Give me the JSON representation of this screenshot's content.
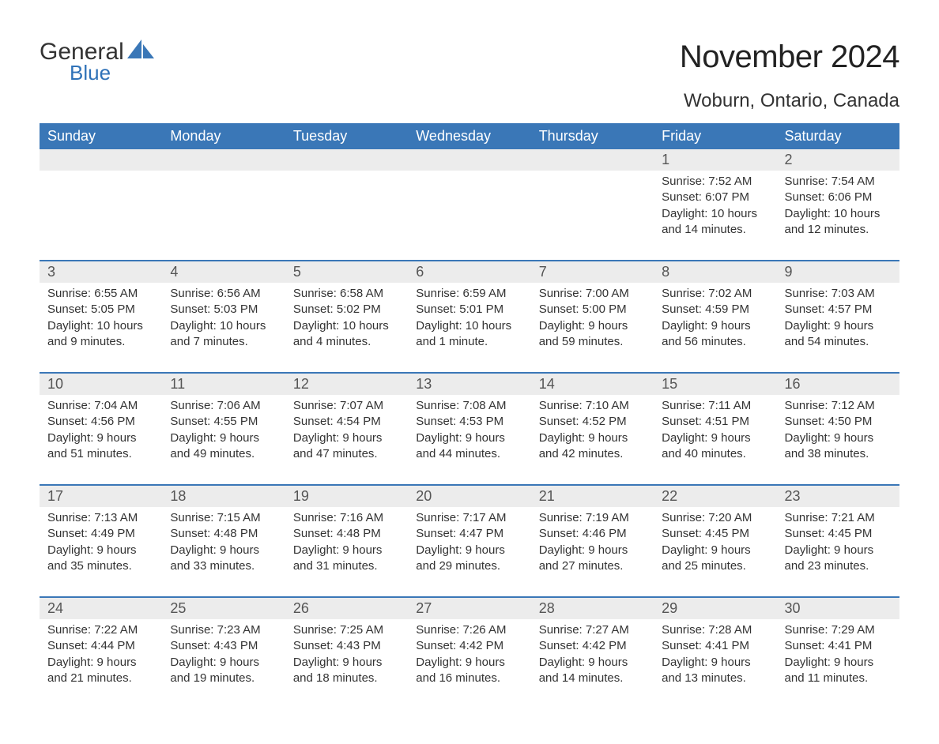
{
  "logo": {
    "text_main": "General",
    "text_accent": "Blue",
    "accent_color": "#2f72b8",
    "sail_color": "#3a77b7"
  },
  "title": "November 2024",
  "location": "Woburn, Ontario, Canada",
  "colors": {
    "header_bg": "#3a77b7",
    "header_text": "#ffffff",
    "daynum_bg": "#ececec",
    "daynum_border": "#3a77b7",
    "text": "#333333",
    "page_bg": "#ffffff"
  },
  "typography": {
    "title_fontsize": 40,
    "subtitle_fontsize": 24,
    "header_fontsize": 18,
    "daynum_fontsize": 18,
    "cell_fontsize": 15
  },
  "days_of_week": [
    "Sunday",
    "Monday",
    "Tuesday",
    "Wednesday",
    "Thursday",
    "Friday",
    "Saturday"
  ],
  "weeks": [
    [
      null,
      null,
      null,
      null,
      null,
      {
        "num": "1",
        "sunrise": "Sunrise: 7:52 AM",
        "sunset": "Sunset: 6:07 PM",
        "daylight": "Daylight: 10 hours and 14 minutes."
      },
      {
        "num": "2",
        "sunrise": "Sunrise: 7:54 AM",
        "sunset": "Sunset: 6:06 PM",
        "daylight": "Daylight: 10 hours and 12 minutes."
      }
    ],
    [
      {
        "num": "3",
        "sunrise": "Sunrise: 6:55 AM",
        "sunset": "Sunset: 5:05 PM",
        "daylight": "Daylight: 10 hours and 9 minutes."
      },
      {
        "num": "4",
        "sunrise": "Sunrise: 6:56 AM",
        "sunset": "Sunset: 5:03 PM",
        "daylight": "Daylight: 10 hours and 7 minutes."
      },
      {
        "num": "5",
        "sunrise": "Sunrise: 6:58 AM",
        "sunset": "Sunset: 5:02 PM",
        "daylight": "Daylight: 10 hours and 4 minutes."
      },
      {
        "num": "6",
        "sunrise": "Sunrise: 6:59 AM",
        "sunset": "Sunset: 5:01 PM",
        "daylight": "Daylight: 10 hours and 1 minute."
      },
      {
        "num": "7",
        "sunrise": "Sunrise: 7:00 AM",
        "sunset": "Sunset: 5:00 PM",
        "daylight": "Daylight: 9 hours and 59 minutes."
      },
      {
        "num": "8",
        "sunrise": "Sunrise: 7:02 AM",
        "sunset": "Sunset: 4:59 PM",
        "daylight": "Daylight: 9 hours and 56 minutes."
      },
      {
        "num": "9",
        "sunrise": "Sunrise: 7:03 AM",
        "sunset": "Sunset: 4:57 PM",
        "daylight": "Daylight: 9 hours and 54 minutes."
      }
    ],
    [
      {
        "num": "10",
        "sunrise": "Sunrise: 7:04 AM",
        "sunset": "Sunset: 4:56 PM",
        "daylight": "Daylight: 9 hours and 51 minutes."
      },
      {
        "num": "11",
        "sunrise": "Sunrise: 7:06 AM",
        "sunset": "Sunset: 4:55 PM",
        "daylight": "Daylight: 9 hours and 49 minutes."
      },
      {
        "num": "12",
        "sunrise": "Sunrise: 7:07 AM",
        "sunset": "Sunset: 4:54 PM",
        "daylight": "Daylight: 9 hours and 47 minutes."
      },
      {
        "num": "13",
        "sunrise": "Sunrise: 7:08 AM",
        "sunset": "Sunset: 4:53 PM",
        "daylight": "Daylight: 9 hours and 44 minutes."
      },
      {
        "num": "14",
        "sunrise": "Sunrise: 7:10 AM",
        "sunset": "Sunset: 4:52 PM",
        "daylight": "Daylight: 9 hours and 42 minutes."
      },
      {
        "num": "15",
        "sunrise": "Sunrise: 7:11 AM",
        "sunset": "Sunset: 4:51 PM",
        "daylight": "Daylight: 9 hours and 40 minutes."
      },
      {
        "num": "16",
        "sunrise": "Sunrise: 7:12 AM",
        "sunset": "Sunset: 4:50 PM",
        "daylight": "Daylight: 9 hours and 38 minutes."
      }
    ],
    [
      {
        "num": "17",
        "sunrise": "Sunrise: 7:13 AM",
        "sunset": "Sunset: 4:49 PM",
        "daylight": "Daylight: 9 hours and 35 minutes."
      },
      {
        "num": "18",
        "sunrise": "Sunrise: 7:15 AM",
        "sunset": "Sunset: 4:48 PM",
        "daylight": "Daylight: 9 hours and 33 minutes."
      },
      {
        "num": "19",
        "sunrise": "Sunrise: 7:16 AM",
        "sunset": "Sunset: 4:48 PM",
        "daylight": "Daylight: 9 hours and 31 minutes."
      },
      {
        "num": "20",
        "sunrise": "Sunrise: 7:17 AM",
        "sunset": "Sunset: 4:47 PM",
        "daylight": "Daylight: 9 hours and 29 minutes."
      },
      {
        "num": "21",
        "sunrise": "Sunrise: 7:19 AM",
        "sunset": "Sunset: 4:46 PM",
        "daylight": "Daylight: 9 hours and 27 minutes."
      },
      {
        "num": "22",
        "sunrise": "Sunrise: 7:20 AM",
        "sunset": "Sunset: 4:45 PM",
        "daylight": "Daylight: 9 hours and 25 minutes."
      },
      {
        "num": "23",
        "sunrise": "Sunrise: 7:21 AM",
        "sunset": "Sunset: 4:45 PM",
        "daylight": "Daylight: 9 hours and 23 minutes."
      }
    ],
    [
      {
        "num": "24",
        "sunrise": "Sunrise: 7:22 AM",
        "sunset": "Sunset: 4:44 PM",
        "daylight": "Daylight: 9 hours and 21 minutes."
      },
      {
        "num": "25",
        "sunrise": "Sunrise: 7:23 AM",
        "sunset": "Sunset: 4:43 PM",
        "daylight": "Daylight: 9 hours and 19 minutes."
      },
      {
        "num": "26",
        "sunrise": "Sunrise: 7:25 AM",
        "sunset": "Sunset: 4:43 PM",
        "daylight": "Daylight: 9 hours and 18 minutes."
      },
      {
        "num": "27",
        "sunrise": "Sunrise: 7:26 AM",
        "sunset": "Sunset: 4:42 PM",
        "daylight": "Daylight: 9 hours and 16 minutes."
      },
      {
        "num": "28",
        "sunrise": "Sunrise: 7:27 AM",
        "sunset": "Sunset: 4:42 PM",
        "daylight": "Daylight: 9 hours and 14 minutes."
      },
      {
        "num": "29",
        "sunrise": "Sunrise: 7:28 AM",
        "sunset": "Sunset: 4:41 PM",
        "daylight": "Daylight: 9 hours and 13 minutes."
      },
      {
        "num": "30",
        "sunrise": "Sunrise: 7:29 AM",
        "sunset": "Sunset: 4:41 PM",
        "daylight": "Daylight: 9 hours and 11 minutes."
      }
    ]
  ]
}
